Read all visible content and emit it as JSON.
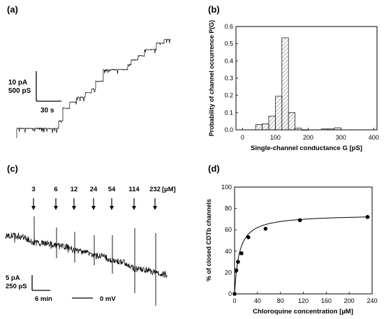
{
  "chart_data": [
    {
      "panel_label": "(a)",
      "type": "line",
      "title": "",
      "xlabel": "",
      "ylabel": "",
      "scale_bar": {
        "current": "10 pA",
        "conductance": "500 pS",
        "time": "30 s"
      },
      "trace_description": "Stepwise increase of membrane current over time as single CDTb channels insert into the lipid bilayer",
      "current_levels_pA": [
        0,
        2.5,
        6.7,
        8.8,
        10.4,
        11.9,
        13.1,
        15.7,
        19.6,
        21.3,
        22.8,
        24.2,
        26.3,
        28.4,
        29.6,
        31.6
      ]
    },
    {
      "panel_label": "(b)",
      "type": "bar",
      "title": "",
      "xlabel": "Single-channel conductance G [pS]",
      "ylabel": "Probability of channel occurrence P(G)",
      "xlim": [
        -20,
        410
      ],
      "ylim": [
        0,
        0.6
      ],
      "x_ticks": [
        "0",
        "100",
        "200",
        "300",
        "400"
      ],
      "y_ticks": [
        "0.0",
        "0.1",
        "0.2",
        "0.3",
        "0.4",
        "0.5",
        "0.6"
      ],
      "bin_width": 20,
      "bins": [
        50,
        70,
        90,
        110,
        130,
        150,
        170,
        190,
        250,
        270,
        290
      ],
      "values": [
        0.03,
        0.035,
        0.08,
        0.195,
        0.535,
        0.1,
        0.01,
        0.0,
        0.005,
        0.005,
        0.012
      ]
    },
    {
      "panel_label": "(c)",
      "type": "line",
      "title": "",
      "xlabel": "",
      "ylabel": "",
      "addition_unit": "[µM]",
      "additions": [
        "3",
        "6",
        "12",
        "24",
        "54",
        "114",
        "232"
      ],
      "scale_bar": {
        "current": "5 pA",
        "conductance": "250 pS",
        "time": "6 min"
      },
      "zero_label": "0 mV",
      "current_levels_pA": [
        4.3,
        3.6,
        3.3,
        2.8,
        2.3,
        1.8,
        1.0,
        0.6
      ]
    },
    {
      "panel_label": "(d)",
      "type": "scatter",
      "title": "",
      "xlabel": "Chloroquine concentration [µM]",
      "ylabel": "% of closed CDTb channels",
      "xlim": [
        0,
        240
      ],
      "ylim": [
        0,
        100
      ],
      "x_ticks": [
        "0",
        "40",
        "80",
        "120",
        "160",
        "200",
        "240"
      ],
      "y_ticks": [
        "0",
        "20",
        "40",
        "60",
        "80",
        "100"
      ],
      "x": [
        0,
        3,
        6,
        12,
        24,
        54,
        114,
        232
      ],
      "y": [
        0,
        22,
        30,
        38,
        53,
        61,
        69,
        72
      ],
      "fit": {
        "type": "langmuir",
        "max": 74.5,
        "K": 8
      }
    }
  ]
}
